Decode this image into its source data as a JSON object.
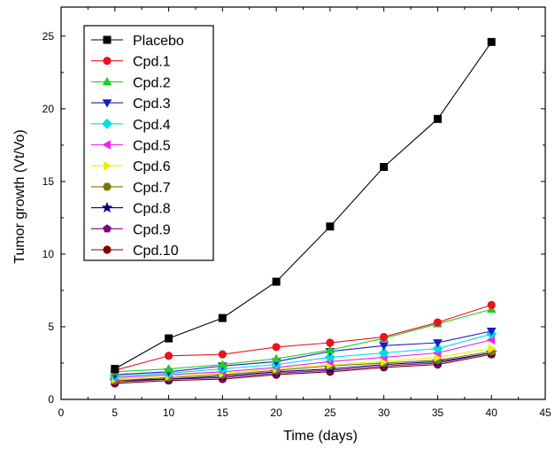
{
  "chart_data": {
    "type": "line",
    "title": "",
    "xlabel": "Time (days)",
    "ylabel": "Tumor growth (Vt/Vo)",
    "xlim": [
      0,
      45
    ],
    "ylim": [
      0,
      27
    ],
    "x_ticks": [
      0,
      5,
      10,
      15,
      20,
      25,
      30,
      35,
      40,
      45
    ],
    "y_ticks": [
      0,
      5,
      10,
      15,
      20,
      25
    ],
    "grid": false,
    "legend_position": "top-left",
    "x": [
      5,
      10,
      15,
      20,
      25,
      30,
      35,
      40
    ],
    "series": [
      {
        "name": "Placebo",
        "color": "#000000",
        "marker": "square",
        "values": [
          2.1,
          4.2,
          5.6,
          8.1,
          11.9,
          16.0,
          19.3,
          24.6
        ]
      },
      {
        "name": "Cpd.1",
        "color": "#e8141c",
        "marker": "circle",
        "values": [
          2.0,
          3.0,
          3.1,
          3.6,
          3.9,
          4.3,
          5.3,
          6.5
        ]
      },
      {
        "name": "Cpd.2",
        "color": "#22cc22",
        "marker": "triangle-up",
        "values": [
          1.9,
          2.1,
          2.4,
          2.8,
          3.4,
          4.2,
          5.2,
          6.2
        ]
      },
      {
        "name": "Cpd.3",
        "color": "#1a1acc",
        "marker": "triangle-down",
        "values": [
          1.7,
          1.9,
          2.3,
          2.6,
          3.3,
          3.7,
          3.9,
          4.7
        ]
      },
      {
        "name": "Cpd.4",
        "color": "#00dddd",
        "marker": "diamond",
        "values": [
          1.6,
          1.8,
          2.1,
          2.4,
          2.9,
          3.2,
          3.5,
          4.5
        ]
      },
      {
        "name": "Cpd.5",
        "color": "#ee22ee",
        "marker": "triangle-left",
        "values": [
          1.5,
          1.7,
          1.9,
          2.2,
          2.6,
          2.9,
          3.2,
          4.1
        ]
      },
      {
        "name": "Cpd.6",
        "color": "#eeee00",
        "marker": "triangle-right",
        "values": [
          1.4,
          1.6,
          1.8,
          2.1,
          2.4,
          2.6,
          2.9,
          3.5
        ]
      },
      {
        "name": "Cpd.7",
        "color": "#777700",
        "marker": "hexagon",
        "values": [
          1.3,
          1.5,
          1.7,
          2.0,
          2.3,
          2.5,
          2.7,
          3.3
        ]
      },
      {
        "name": "Cpd.8",
        "color": "#000080",
        "marker": "star",
        "values": [
          1.3,
          1.4,
          1.6,
          1.9,
          2.1,
          2.4,
          2.6,
          3.2
        ]
      },
      {
        "name": "Cpd.9",
        "color": "#800080",
        "marker": "pentagon",
        "values": [
          1.2,
          1.4,
          1.5,
          1.8,
          2.0,
          2.3,
          2.5,
          3.2
        ]
      },
      {
        "name": "Cpd.10",
        "color": "#800000",
        "marker": "circle",
        "values": [
          1.1,
          1.3,
          1.4,
          1.7,
          1.9,
          2.2,
          2.4,
          3.1
        ]
      }
    ]
  }
}
